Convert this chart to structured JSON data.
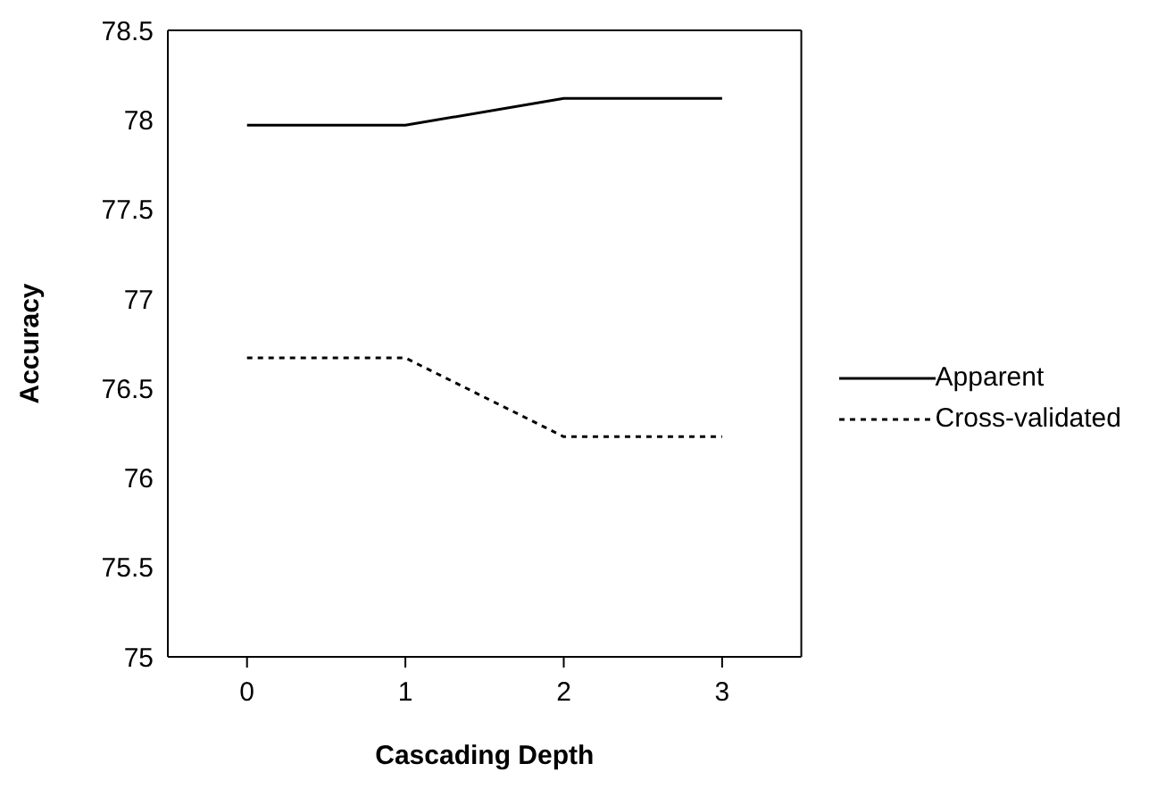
{
  "chart_data": {
    "type": "line",
    "xlabel": "Cascading Depth",
    "ylabel": "Accuracy",
    "categories": [
      "0",
      "1",
      "2",
      "3"
    ],
    "series": [
      {
        "name": "Apparent",
        "color": "#000000",
        "line_style": "solid",
        "values": [
          77.97,
          77.97,
          78.12,
          78.12
        ]
      },
      {
        "name": "Cross-validated",
        "color": "#000000",
        "line_style": "dotted",
        "values": [
          76.67,
          76.67,
          76.23,
          76.23
        ]
      }
    ],
    "ylim": [
      75,
      78.5
    ],
    "yticks": [
      75,
      75.5,
      76,
      76.5,
      77,
      77.5,
      78,
      78.5
    ],
    "grid": false,
    "legend": "right",
    "marker": "none"
  }
}
